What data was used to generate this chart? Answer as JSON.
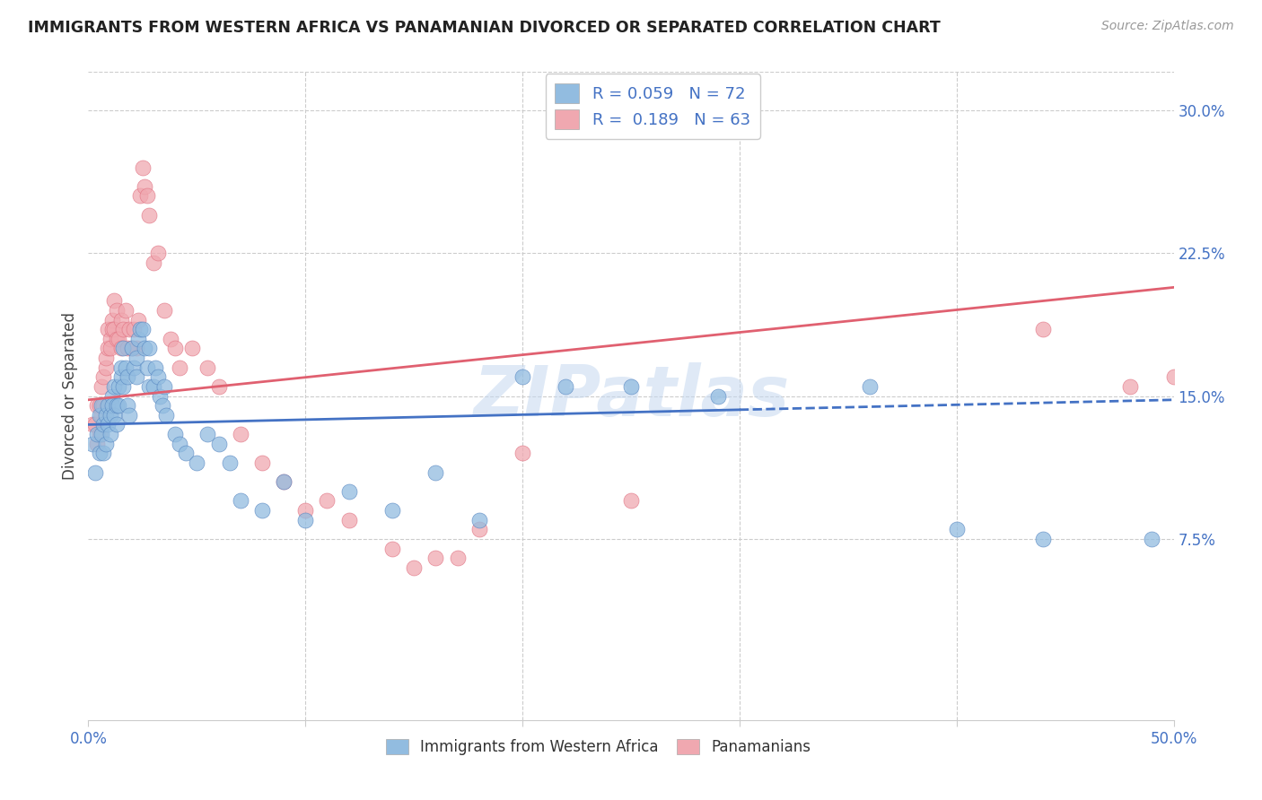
{
  "title": "IMMIGRANTS FROM WESTERN AFRICA VS PANAMANIAN DIVORCED OR SEPARATED CORRELATION CHART",
  "source": "Source: ZipAtlas.com",
  "ylabel": "Divorced or Separated",
  "xlim": [
    0.0,
    0.5
  ],
  "ylim": [
    -0.02,
    0.32
  ],
  "xtick_positions": [
    0.0,
    0.1,
    0.2,
    0.3,
    0.4,
    0.5
  ],
  "xtick_labels": [
    "0.0%",
    "",
    "",
    "",
    "",
    "50.0%"
  ],
  "ytick_values_right": [
    0.075,
    0.15,
    0.225,
    0.3
  ],
  "ytick_labels_right": [
    "7.5%",
    "15.0%",
    "22.5%",
    "30.0%"
  ],
  "legend_blue_r": "R = 0.059",
  "legend_blue_n": "N = 72",
  "legend_pink_r": "R =  0.189",
  "legend_pink_n": "N = 63",
  "blue_color": "#92bce0",
  "pink_color": "#f0a8b0",
  "blue_line_color": "#4472c4",
  "pink_line_color": "#e06070",
  "title_color": "#222222",
  "source_color": "#999999",
  "tick_color": "#4472c4",
  "grid_color": "#cccccc",
  "watermark": "ZIPatlas",
  "blue_scatter": [
    [
      0.002,
      0.125
    ],
    [
      0.003,
      0.11
    ],
    [
      0.004,
      0.13
    ],
    [
      0.005,
      0.12
    ],
    [
      0.005,
      0.14
    ],
    [
      0.006,
      0.13
    ],
    [
      0.006,
      0.145
    ],
    [
      0.007,
      0.135
    ],
    [
      0.007,
      0.12
    ],
    [
      0.008,
      0.14
    ],
    [
      0.008,
      0.125
    ],
    [
      0.009,
      0.145
    ],
    [
      0.009,
      0.135
    ],
    [
      0.01,
      0.13
    ],
    [
      0.01,
      0.14
    ],
    [
      0.011,
      0.15
    ],
    [
      0.011,
      0.145
    ],
    [
      0.012,
      0.155
    ],
    [
      0.012,
      0.14
    ],
    [
      0.013,
      0.145
    ],
    [
      0.013,
      0.135
    ],
    [
      0.014,
      0.145
    ],
    [
      0.014,
      0.155
    ],
    [
      0.015,
      0.16
    ],
    [
      0.015,
      0.165
    ],
    [
      0.016,
      0.175
    ],
    [
      0.016,
      0.155
    ],
    [
      0.017,
      0.165
    ],
    [
      0.018,
      0.16
    ],
    [
      0.018,
      0.145
    ],
    [
      0.019,
      0.14
    ],
    [
      0.02,
      0.175
    ],
    [
      0.021,
      0.165
    ],
    [
      0.022,
      0.16
    ],
    [
      0.022,
      0.17
    ],
    [
      0.023,
      0.18
    ],
    [
      0.024,
      0.185
    ],
    [
      0.025,
      0.185
    ],
    [
      0.026,
      0.175
    ],
    [
      0.027,
      0.165
    ],
    [
      0.028,
      0.155
    ],
    [
      0.028,
      0.175
    ],
    [
      0.03,
      0.155
    ],
    [
      0.031,
      0.165
    ],
    [
      0.032,
      0.16
    ],
    [
      0.033,
      0.15
    ],
    [
      0.034,
      0.145
    ],
    [
      0.035,
      0.155
    ],
    [
      0.036,
      0.14
    ],
    [
      0.04,
      0.13
    ],
    [
      0.042,
      0.125
    ],
    [
      0.045,
      0.12
    ],
    [
      0.05,
      0.115
    ],
    [
      0.055,
      0.13
    ],
    [
      0.06,
      0.125
    ],
    [
      0.065,
      0.115
    ],
    [
      0.07,
      0.095
    ],
    [
      0.08,
      0.09
    ],
    [
      0.09,
      0.105
    ],
    [
      0.1,
      0.085
    ],
    [
      0.12,
      0.1
    ],
    [
      0.14,
      0.09
    ],
    [
      0.16,
      0.11
    ],
    [
      0.18,
      0.085
    ],
    [
      0.2,
      0.16
    ],
    [
      0.22,
      0.155
    ],
    [
      0.25,
      0.155
    ],
    [
      0.29,
      0.15
    ],
    [
      0.36,
      0.155
    ],
    [
      0.4,
      0.08
    ],
    [
      0.44,
      0.075
    ],
    [
      0.49,
      0.075
    ]
  ],
  "pink_scatter": [
    [
      0.002,
      0.135
    ],
    [
      0.003,
      0.135
    ],
    [
      0.004,
      0.145
    ],
    [
      0.004,
      0.125
    ],
    [
      0.005,
      0.145
    ],
    [
      0.005,
      0.13
    ],
    [
      0.006,
      0.155
    ],
    [
      0.006,
      0.14
    ],
    [
      0.007,
      0.16
    ],
    [
      0.007,
      0.145
    ],
    [
      0.008,
      0.165
    ],
    [
      0.008,
      0.17
    ],
    [
      0.009,
      0.175
    ],
    [
      0.009,
      0.185
    ],
    [
      0.01,
      0.18
    ],
    [
      0.01,
      0.175
    ],
    [
      0.011,
      0.19
    ],
    [
      0.011,
      0.185
    ],
    [
      0.012,
      0.185
    ],
    [
      0.012,
      0.2
    ],
    [
      0.013,
      0.195
    ],
    [
      0.013,
      0.18
    ],
    [
      0.014,
      0.18
    ],
    [
      0.015,
      0.19
    ],
    [
      0.015,
      0.175
    ],
    [
      0.016,
      0.185
    ],
    [
      0.017,
      0.195
    ],
    [
      0.018,
      0.175
    ],
    [
      0.019,
      0.185
    ],
    [
      0.02,
      0.175
    ],
    [
      0.021,
      0.185
    ],
    [
      0.022,
      0.175
    ],
    [
      0.023,
      0.19
    ],
    [
      0.024,
      0.255
    ],
    [
      0.025,
      0.27
    ],
    [
      0.026,
      0.26
    ],
    [
      0.027,
      0.255
    ],
    [
      0.028,
      0.245
    ],
    [
      0.03,
      0.22
    ],
    [
      0.032,
      0.225
    ],
    [
      0.035,
      0.195
    ],
    [
      0.038,
      0.18
    ],
    [
      0.04,
      0.175
    ],
    [
      0.042,
      0.165
    ],
    [
      0.048,
      0.175
    ],
    [
      0.055,
      0.165
    ],
    [
      0.06,
      0.155
    ],
    [
      0.07,
      0.13
    ],
    [
      0.08,
      0.115
    ],
    [
      0.09,
      0.105
    ],
    [
      0.1,
      0.09
    ],
    [
      0.11,
      0.095
    ],
    [
      0.12,
      0.085
    ],
    [
      0.14,
      0.07
    ],
    [
      0.15,
      0.06
    ],
    [
      0.16,
      0.065
    ],
    [
      0.17,
      0.065
    ],
    [
      0.18,
      0.08
    ],
    [
      0.2,
      0.12
    ],
    [
      0.25,
      0.095
    ],
    [
      0.44,
      0.185
    ],
    [
      0.48,
      0.155
    ],
    [
      0.5,
      0.16
    ]
  ],
  "blue_line": {
    "x0": 0.0,
    "y0": 0.135,
    "x1": 0.5,
    "y1": 0.148
  },
  "pink_line": {
    "x0": 0.0,
    "y0": 0.148,
    "x1": 0.5,
    "y1": 0.207
  },
  "blue_line_dashed_from": 0.3
}
